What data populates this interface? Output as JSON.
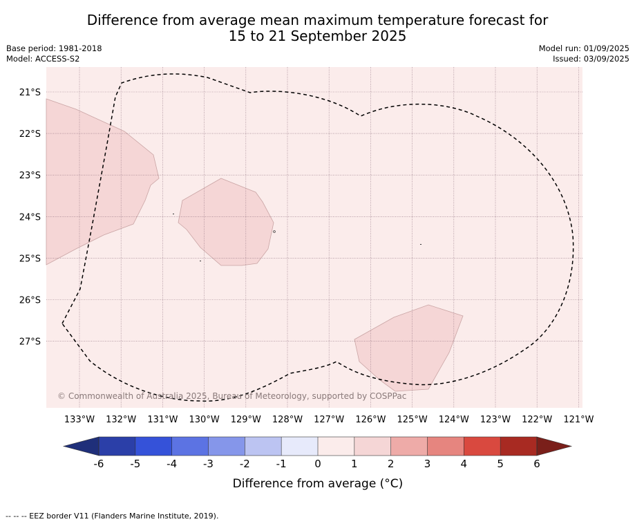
{
  "title": {
    "line1": "Difference from average mean maximum temperature forecast for",
    "line2": "15 to 21 September 2025"
  },
  "meta": {
    "base_period": "Base period: 1981-2018",
    "model": "Model: ACCESS-S2",
    "model_run": "Model run: 01/09/2025",
    "issued": "Issued: 03/09/2025"
  },
  "map": {
    "background_color": "#fbeceb",
    "warm_patch_color": "#f5d6d6",
    "copyright": "© Commonwealth of Australia 2025, Bureau of Meteorology, supported by COSPPac",
    "lat_labels": [
      "21°S",
      "22°S",
      "23°S",
      "24°S",
      "25°S",
      "26°S",
      "27°S"
    ],
    "lon_labels": [
      "133°W",
      "132°W",
      "131°W",
      "130°W",
      "129°W",
      "128°W",
      "127°W",
      "126°W",
      "125°W",
      "124°W",
      "123°W",
      "122°W",
      "121°W"
    ]
  },
  "colorbar": {
    "label": "Difference from average (°C)",
    "ticks": [
      "-6",
      "-5",
      "-4",
      "-3",
      "-2",
      "-1",
      "0",
      "1",
      "2",
      "3",
      "4",
      "5",
      "6"
    ],
    "under_color": "#1f2f7a",
    "over_color": "#7a1f1a",
    "colors": [
      "#2b3fa8",
      "#3552d9",
      "#5c73e3",
      "#8596ea",
      "#bcc4f2",
      "#e7eafb",
      "#fbeceb",
      "#f5d6d6",
      "#eeaba8",
      "#e6857f",
      "#d9493f",
      "#a82a22"
    ]
  },
  "footnote": "-- -- -- EEZ border V11 (Flanders Marine Institute, 2019)."
}
